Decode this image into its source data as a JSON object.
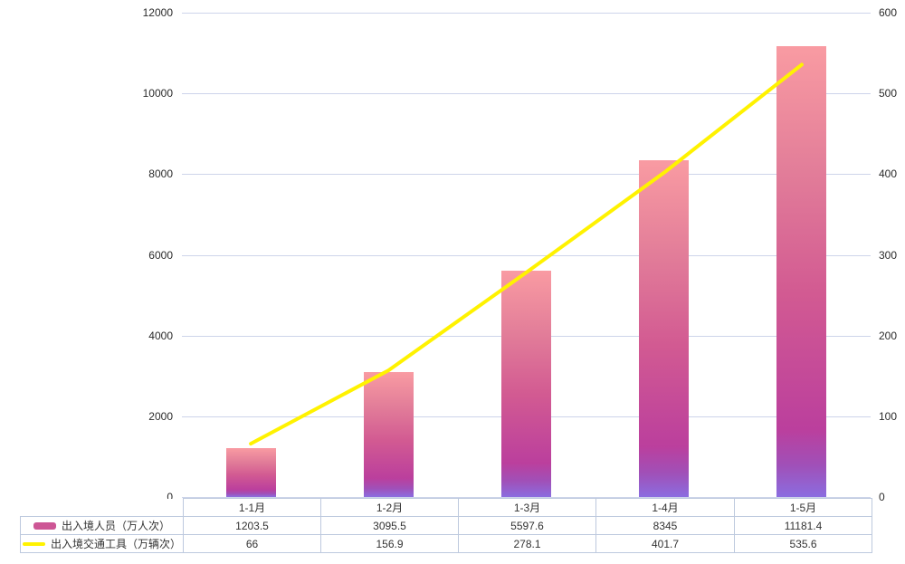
{
  "chart_data": {
    "type": "bar",
    "subtype": "combo-bar-line",
    "title": "",
    "categories": [
      "1-1月",
      "1-2月",
      "1-3月",
      "1-4月",
      "1-5月"
    ],
    "series": [
      {
        "name": "出入境人员（万人次）",
        "type": "bar",
        "axis": "left",
        "values": [
          1203.5,
          3095.5,
          5597.6,
          8345,
          11181.4
        ]
      },
      {
        "name": "出入境交通工具（万辆次）",
        "type": "line",
        "axis": "right",
        "values": [
          66,
          156.9,
          278.1,
          401.7,
          535.6
        ]
      }
    ],
    "left_axis": {
      "min": 0,
      "max": 12000,
      "step": 2000,
      "ticks": [
        "12000",
        "10000",
        "8000",
        "6000",
        "4000",
        "2000",
        "0"
      ]
    },
    "right_axis": {
      "min": 0,
      "max": 600,
      "step": 100,
      "ticks": [
        "600",
        "500",
        "400",
        "300",
        "200",
        "100",
        "0"
      ]
    },
    "grid": true,
    "legend_position": "table-left"
  },
  "colors": {
    "background": "#ffffff",
    "gridline": "#cdd4ea",
    "table_border": "#bdc9de",
    "axis_text": "#2b2b2b",
    "table_text": "#333333",
    "line": "#fff200",
    "bar_gradient_top": "#f99ba2",
    "bar_gradient_mid": "#d25a92",
    "bar_gradient_lower": "#bb3f9d",
    "bar_gradient_bottom": "#8b6de0",
    "legend_bar_swatch": "#cd5695",
    "legend_line_swatch": "#fff200"
  }
}
